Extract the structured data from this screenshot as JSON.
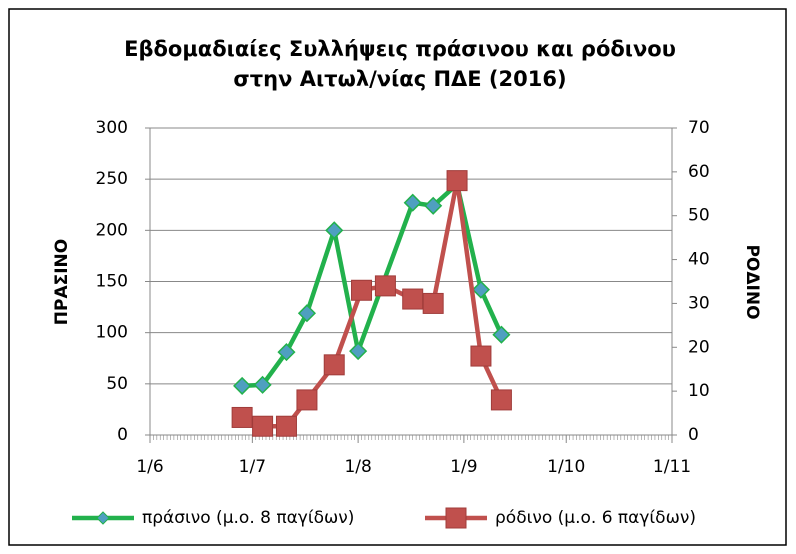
{
  "chart_data": {
    "type": "line",
    "title": [
      "Εβδομαδιαίες Συλλήψεις πράσινου και ρόδινου",
      "στην Αιτωλ/νίας ΠΔΕ (2016)"
    ],
    "y_label": "ΠΡΑΣΙΝΟ",
    "y2_label": "ΡΟΔΙΝΟ",
    "xlim": [
      "1/6",
      "1/11"
    ],
    "xticks": [
      "1/6",
      "1/7",
      "1/8",
      "1/9",
      "1/10",
      "1/11"
    ],
    "ylim": [
      0,
      300
    ],
    "yticks": [
      0,
      50,
      100,
      150,
      200,
      250,
      300
    ],
    "y2lim": [
      0,
      70
    ],
    "y2ticks": [
      0,
      10,
      20,
      30,
      40,
      50,
      60,
      70
    ],
    "grid": true,
    "legend": "bottom",
    "series": [
      {
        "name": "πράσινο (μ.ο. 8 παγίδων)",
        "color": "#22b14c",
        "marker": "diamond",
        "marker_color": "#4f9fc0",
        "x": [
          "28/6",
          "4/7",
          "11/7",
          "17/7",
          "25/7",
          "1/8",
          "17/8",
          "23/8",
          "30/8",
          "6/9",
          "12/9"
        ],
        "values": [
          48,
          49,
          81,
          119,
          200,
          82,
          227,
          224,
          245,
          142,
          98
        ]
      },
      {
        "name": "ρόδινο (μ.ο. 6 παγίδων)",
        "color": "#c0504d",
        "marker": "square",
        "marker_color": "#c0504d",
        "axis": "y2",
        "x": [
          "28/6",
          "4/7",
          "11/7",
          "17/7",
          "25/7",
          "2/8",
          "9/8",
          "17/8",
          "23/8",
          "30/8",
          "6/9",
          "12/9"
        ],
        "values": [
          4,
          2,
          2,
          8,
          16,
          33,
          34,
          31,
          30,
          58,
          18,
          8
        ]
      }
    ]
  }
}
